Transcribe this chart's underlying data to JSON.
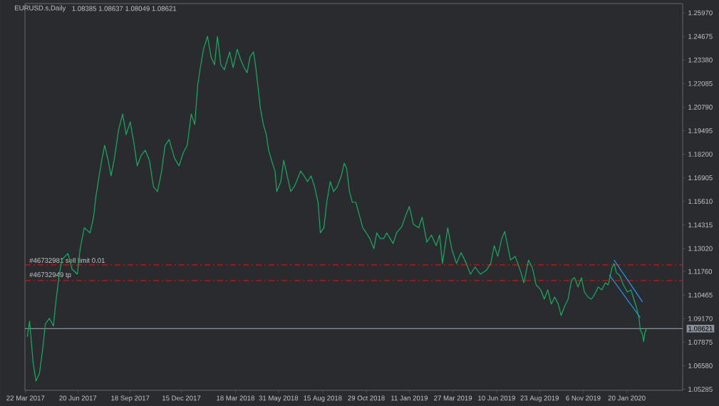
{
  "chart_data": {
    "type": "line",
    "title": "EURUSD.s,Daily",
    "subtitle": "1.08385 1.08637 1.08049 1.08621",
    "xlim": [
      "2017-03-21",
      "2020-04-25"
    ],
    "xticks": [
      {
        "value": "2017-03-22",
        "label": "22 Mar 2017"
      },
      {
        "value": "2017-06-20",
        "label": "20 Jun 2017"
      },
      {
        "value": "2017-09-18",
        "label": "18 Sep 2017"
      },
      {
        "value": "2017-12-15",
        "label": "15 Dec 2017"
      },
      {
        "value": "2018-03-18",
        "label": "18 Mar 2018"
      },
      {
        "value": "2018-05-31",
        "label": "31 May 2018"
      },
      {
        "value": "2018-08-15",
        "label": "15 Aug 2018"
      },
      {
        "value": "2018-10-29",
        "label": "29 Oct 2018"
      },
      {
        "value": "2019-01-11",
        "label": "11 Jan 2019"
      },
      {
        "value": "2019-03-27",
        "label": "27 Mar 2019"
      },
      {
        "value": "2019-06-10",
        "label": "10 Jun 2019"
      },
      {
        "value": "2019-08-23",
        "label": "23 Aug 2019"
      },
      {
        "value": "2019-11-06",
        "label": "6 Nov 2019"
      },
      {
        "value": "2020-01-20",
        "label": "20 Jan 2020"
      }
    ],
    "ylim": [
      1.0523,
      1.2648
    ],
    "yticks": [
      {
        "value": 1.2597,
        "label": "1.25970"
      },
      1.24675,
      {
        "value": 1.2338,
        "label": "1.23380"
      },
      1.22085,
      {
        "value": 1.2079,
        "label": "1.20790"
      },
      1.19495,
      {
        "value": 1.182,
        "label": "1.18200"
      },
      1.16905,
      {
        "value": 1.1561,
        "label": "1.15610"
      },
      1.14315,
      {
        "value": 1.1302,
        "label": "1.13020"
      },
      {
        "value": 1.1176,
        "label": "1.11760"
      },
      1.10465,
      {
        "value": 1.0917,
        "label": "1.09170"
      },
      1.07875,
      {
        "value": 1.0658,
        "label": "1.06580"
      },
      1.05285
    ],
    "series": [
      {
        "color": "#10b060",
        "x": [
          "2017-03-25",
          "2017-03-29",
          "2017-04-04",
          "2017-04-09",
          "2017-04-15",
          "2017-04-21",
          "2017-04-25",
          "2017-05-02",
          "2017-05-09",
          "2017-05-13",
          "2017-05-19",
          "2017-05-24",
          "2017-06-03",
          "2017-06-10",
          "2017-06-19",
          "2017-06-24",
          "2017-07-01",
          "2017-07-11",
          "2017-07-17",
          "2017-07-21",
          "2017-07-25",
          "2017-07-31",
          "2017-08-05",
          "2017-08-11",
          "2017-08-16",
          "2017-08-22",
          "2017-08-29",
          "2017-09-05",
          "2017-09-11",
          "2017-09-18",
          "2017-09-25",
          "2017-09-30",
          "2017-10-07",
          "2017-10-14",
          "2017-10-21",
          "2017-10-28",
          "2017-11-04",
          "2017-11-11",
          "2017-11-17",
          "2017-11-24",
          "2017-12-03",
          "2017-12-11",
          "2017-12-18",
          "2017-12-25",
          "2018-01-01",
          "2018-01-07",
          "2018-01-12",
          "2018-01-16",
          "2018-01-22",
          "2018-01-29",
          "2018-02-04",
          "2018-02-10",
          "2018-02-15",
          "2018-02-21",
          "2018-02-27",
          "2018-03-08",
          "2018-03-14",
          "2018-03-21",
          "2018-03-27",
          "2018-04-02",
          "2018-04-07",
          "2018-04-12",
          "2018-04-18",
          "2018-04-22",
          "2018-04-26",
          "2018-04-30",
          "2018-05-05",
          "2018-05-10",
          "2018-05-14",
          "2018-05-19",
          "2018-05-25",
          "2018-05-28",
          "2018-06-04",
          "2018-06-09",
          "2018-06-15",
          "2018-06-21",
          "2018-06-27",
          "2018-07-01",
          "2018-07-08",
          "2018-07-14",
          "2018-07-20",
          "2018-07-26",
          "2018-08-01",
          "2018-08-07",
          "2018-08-11",
          "2018-08-17",
          "2018-08-22",
          "2018-08-28",
          "2018-09-03",
          "2018-09-09",
          "2018-09-16",
          "2018-09-21",
          "2018-09-25",
          "2018-09-30",
          "2018-10-05",
          "2018-10-11",
          "2018-10-17",
          "2018-10-23",
          "2018-10-29",
          "2018-11-04",
          "2018-11-11",
          "2018-11-16",
          "2018-11-22",
          "2018-11-28",
          "2018-12-03",
          "2018-12-09",
          "2018-12-14",
          "2018-12-20",
          "2018-12-29",
          "2019-01-06",
          "2019-01-11",
          "2019-01-18",
          "2019-01-27",
          "2019-02-02",
          "2019-02-10",
          "2019-02-18",
          "2019-02-26",
          "2019-03-04",
          "2019-03-09",
          "2019-03-18",
          "2019-03-25",
          "2019-04-02",
          "2019-04-10",
          "2019-04-19",
          "2019-04-26",
          "2019-05-04",
          "2019-05-13",
          "2019-05-23",
          "2019-05-31",
          "2019-06-06",
          "2019-06-12",
          "2019-06-19",
          "2019-06-24",
          "2019-06-29",
          "2019-07-04",
          "2019-07-12",
          "2019-07-22",
          "2019-07-27",
          "2019-08-04",
          "2019-08-11",
          "2019-08-17",
          "2019-08-25",
          "2019-08-31",
          "2019-09-06",
          "2019-09-12",
          "2019-09-18",
          "2019-09-24",
          "2019-09-29",
          "2019-10-05",
          "2019-10-11",
          "2019-10-17",
          "2019-10-22",
          "2019-10-28",
          "2019-11-03",
          "2019-11-08",
          "2019-11-14",
          "2019-11-20",
          "2019-11-26",
          "2019-12-02",
          "2019-12-08",
          "2019-12-14",
          "2019-12-19",
          "2019-12-25",
          "2019-12-29",
          "2020-01-02",
          "2020-01-08",
          "2020-01-14",
          "2020-01-21",
          "2020-01-27",
          "2020-02-01",
          "2020-02-05",
          "2020-02-10",
          "2020-02-12",
          "2020-02-16",
          "2020-02-18",
          "2020-02-20",
          "2020-02-23"
        ],
        "values": [
          1.0817,
          1.0903,
          1.0676,
          1.0574,
          1.0617,
          1.0762,
          1.0887,
          1.0919,
          1.0876,
          1.1005,
          1.1161,
          1.1243,
          1.1275,
          1.1189,
          1.1161,
          1.1302,
          1.1416,
          1.1388,
          1.1474,
          1.1588,
          1.167,
          1.1787,
          1.1869,
          1.1787,
          1.1701,
          1.1799,
          1.1955,
          1.2041,
          1.1928,
          1.1998,
          1.1869,
          1.1756,
          1.1815,
          1.1842,
          1.1787,
          1.1642,
          1.1615,
          1.1728,
          1.1869,
          1.1901,
          1.1799,
          1.1756,
          1.1826,
          1.1869,
          1.2041,
          1.1983,
          1.2198,
          1.2284,
          1.2397,
          1.2468,
          1.2354,
          1.2311,
          1.2468,
          1.2311,
          1.2284,
          1.2382,
          1.2296,
          1.2397,
          1.2339,
          1.2296,
          1.2268,
          1.2354,
          1.2382,
          1.2296,
          1.2182,
          1.2069,
          1.1983,
          1.1928,
          1.1842,
          1.1787,
          1.1728,
          1.1615,
          1.167,
          1.1787,
          1.1701,
          1.1615,
          1.1642,
          1.167,
          1.1728,
          1.1701,
          1.167,
          1.1701,
          1.1642,
          1.1556,
          1.1388,
          1.1416,
          1.1556,
          1.167,
          1.1615,
          1.1642,
          1.1701,
          1.1771,
          1.1744,
          1.1615,
          1.1556,
          1.1556,
          1.1486,
          1.1416,
          1.1388,
          1.1357,
          1.1302,
          1.1388,
          1.1357,
          1.1357,
          1.1388,
          1.1357,
          1.1329,
          1.1388,
          1.1423,
          1.1494,
          1.1533,
          1.1435,
          1.1416,
          1.1474,
          1.1337,
          1.1376,
          1.1318,
          1.1376,
          1.122,
          1.1416,
          1.1298,
          1.122,
          1.1279,
          1.122,
          1.1161,
          1.12,
          1.1161,
          1.1181,
          1.122,
          1.1318,
          1.1259,
          1.1357,
          1.1396,
          1.1318,
          1.1239,
          1.1259,
          1.1169,
          1.1114,
          1.1239,
          1.1192,
          1.1102,
          1.1075,
          1.1024,
          1.1075,
          1.0997,
          1.1036,
          1.0997,
          1.0934,
          1.0985,
          1.1024,
          1.113,
          1.1142,
          1.1091,
          1.1142,
          1.1063,
          1.1036,
          1.1024,
          1.1052,
          1.1091,
          1.1075,
          1.1114,
          1.1102,
          1.1192,
          1.122,
          1.1169,
          1.1153,
          1.1102,
          1.1063,
          1.1075,
          1.1024,
          1.0985,
          1.0919,
          1.0856,
          1.0829,
          1.079,
          1.084,
          1.0862
        ]
      },
      {
        "color": "#1ea0ff",
        "x": [
          "2019-12-29",
          "2020-02-16"
        ],
        "values": [
          1.1239,
          1.1009
        ]
      },
      {
        "color": "#1ea0ff",
        "x": [
          "2019-12-21",
          "2020-02-12"
        ],
        "values": [
          1.1157,
          1.0923
        ]
      }
    ],
    "ref_lines": [
      {
        "axis": "y",
        "value": 1.1212,
        "label": "#46732981 sell limit 0.01",
        "color": "#ff0000",
        "line_style": "dashed"
      },
      {
        "axis": "y",
        "value": 1.1126,
        "label": "#46732949 tp",
        "color": "#ff0000",
        "line_style": "dashed"
      },
      {
        "axis": "y",
        "value": 1.08621,
        "label": "1.08621",
        "color": "#8a9099",
        "line_style": "solid"
      }
    ],
    "grid": false,
    "marker": "none",
    "line_style": "solid"
  }
}
